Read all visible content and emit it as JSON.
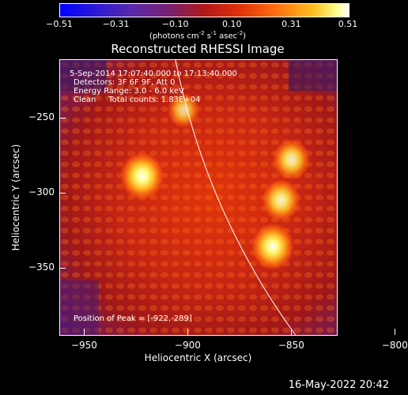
{
  "colorbar": {
    "tick_labels": [
      "-0.51",
      "-0.31",
      "-0.10",
      "0.10",
      "0.31",
      "0.51"
    ],
    "tick_values": [
      -0.51,
      -0.31,
      -0.1,
      0.1,
      0.31,
      0.51
    ],
    "range": [
      -0.51,
      0.51
    ],
    "units_label": "(photons cm",
    "units_sup1": "-2",
    "units_mid": " s",
    "units_sup2": "-1",
    "units_mid2": " asec",
    "units_sup3": "-2",
    "units_end": ")"
  },
  "title": "Reconstructed RHESSI Image",
  "annotations": {
    "time": "5-Sep-2014 17:07:40.000 to 17:13:40.000",
    "detectors": "Detectors: 3F 6F 9F, Att 0",
    "energy": "Energy Range: 3.0 - 6.0 keV",
    "clean": "Clean     Total counts: 1.83E+04",
    "peak": "Position of Peak = [-922,-289]"
  },
  "footer_timestamp": "16-May-2022 20:42",
  "chart_data": {
    "type": "heatmap",
    "title": "Reconstructed RHESSI Image",
    "xlabel": "Heliocentric X (arcsec)",
    "ylabel": "Heliocentric Y (arcsec)",
    "xlim": [
      -962,
      -828
    ],
    "ylim": [
      -395,
      -211
    ],
    "x_ticks": [
      -950,
      -900,
      -850,
      -800
    ],
    "x_tick_labels": [
      "-950",
      "-900",
      "-850",
      "-800"
    ],
    "y_ticks": [
      -250,
      -300,
      -350
    ],
    "y_tick_labels": [
      "-250",
      "-300",
      "-350"
    ],
    "colormap": "black-blue-purple-red-orange-yellow-white",
    "sources": [
      {
        "x": -922,
        "y": -289,
        "intensity": 1.0
      },
      {
        "x": -859,
        "y": -336,
        "intensity": 0.95
      },
      {
        "x": -855,
        "y": -305,
        "intensity": 0.75
      },
      {
        "x": -850,
        "y": -278,
        "intensity": 0.7
      },
      {
        "x": -902,
        "y": -245,
        "intensity": 0.45
      }
    ],
    "limb_curve": {
      "from": [
        -906,
        -211
      ],
      "to": [
        -848,
        -395
      ]
    }
  }
}
